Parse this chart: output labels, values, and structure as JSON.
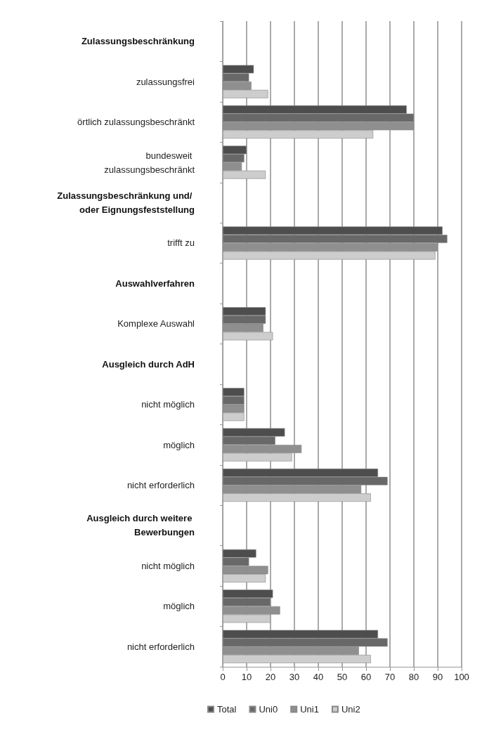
{
  "chart_data": {
    "type": "bar",
    "orientation": "horizontal",
    "categories": [
      "Zulassungsbeschränkung",
      "zulassungsfrei",
      "örtlich zulassungsbeschränkt",
      "bundesweit zulassungsbeschränkt",
      "Zulassungsbeschränkung und/ oder Eignungsfeststellung",
      "trifft zu",
      "Auswahlverfahren",
      "Komplexe Auswahl",
      "Ausgleich durch AdH",
      "nicht möglich",
      "möglich",
      "nicht erforderlich",
      "Ausgleich durch weitere Bewerbungen",
      "nicht möglich",
      "möglich",
      "nicht erforderlich"
    ],
    "series": [
      {
        "name": "Total",
        "color": "#4d4d4d",
        "values": [
          null,
          13,
          77,
          10,
          null,
          92,
          null,
          18,
          null,
          9,
          26,
          65,
          null,
          14,
          21,
          65
        ]
      },
      {
        "name": "Uni0",
        "color": "#686868",
        "values": [
          null,
          11,
          80,
          9,
          null,
          94,
          null,
          18,
          null,
          9,
          22,
          69,
          null,
          11,
          20,
          69
        ]
      },
      {
        "name": "Uni1",
        "color": "#8f8f8f",
        "values": [
          null,
          12,
          80,
          8,
          null,
          90,
          null,
          17,
          null,
          9,
          33,
          58,
          null,
          19,
          24,
          57
        ]
      },
      {
        "name": "Uni2",
        "color": "#cdcdcd",
        "values": [
          null,
          19,
          63,
          18,
          null,
          89,
          null,
          21,
          null,
          9,
          29,
          62,
          null,
          18,
          20,
          62
        ]
      }
    ],
    "xlim": [
      0,
      100
    ],
    "xticks": [
      0,
      10,
      20,
      30,
      40,
      50,
      60,
      70,
      80,
      90,
      100
    ],
    "grid": "x",
    "legend": "bottom"
  }
}
